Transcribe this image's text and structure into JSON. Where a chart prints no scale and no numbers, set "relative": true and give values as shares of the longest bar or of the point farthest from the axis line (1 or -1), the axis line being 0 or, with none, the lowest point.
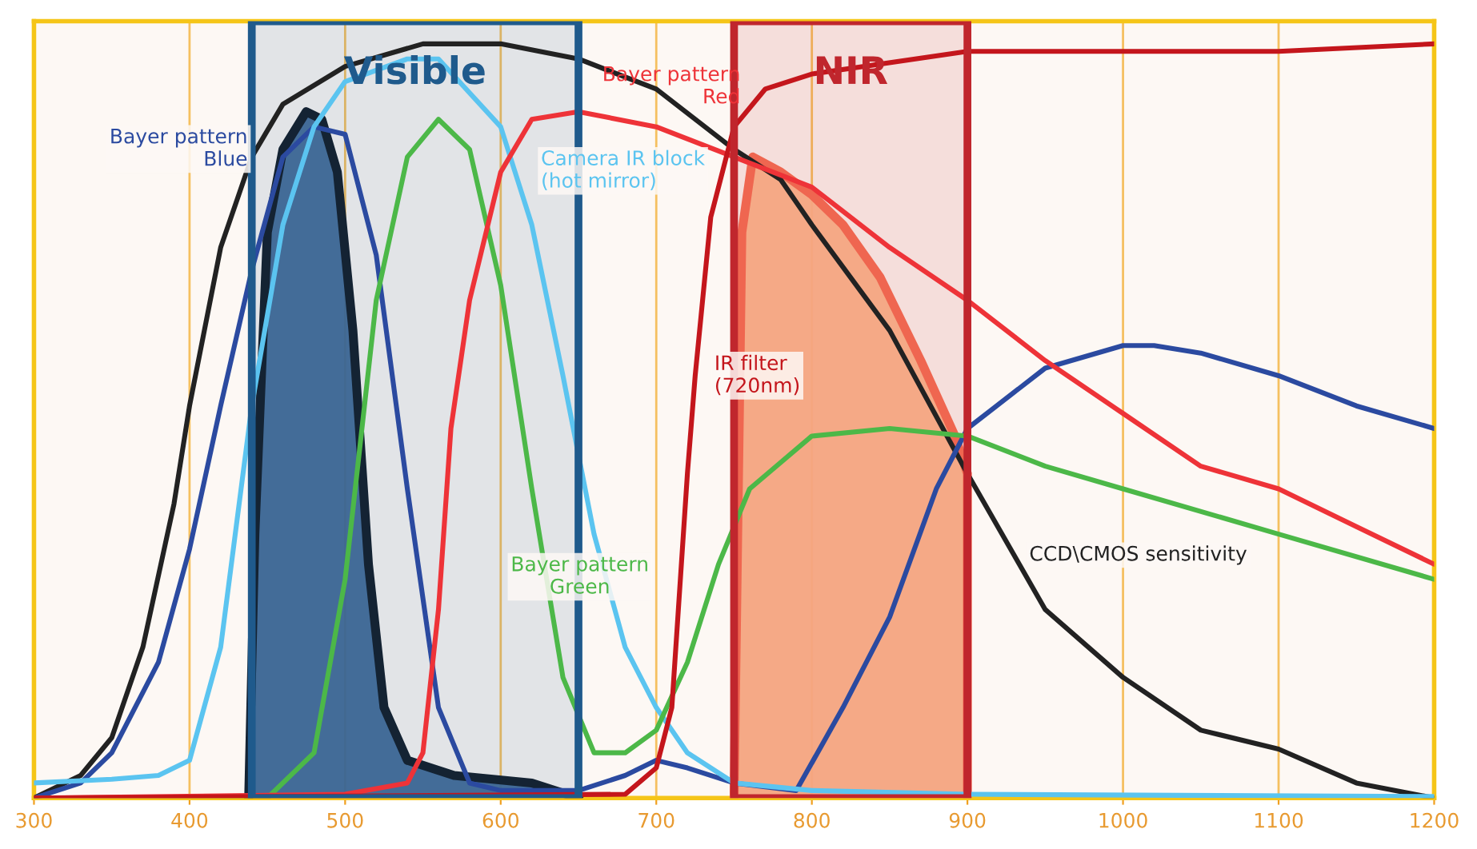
{
  "chart_data": {
    "type": "line",
    "relative": true,
    "xlim": [
      300,
      1200
    ],
    "xticks": [
      300,
      400,
      500,
      600,
      700,
      800,
      900,
      1000,
      1100,
      1200
    ],
    "grid": "x",
    "legend": false,
    "series": [
      {
        "name": "CCD\\CMOS sensitivity",
        "color": "#222222",
        "x": [
          300,
          330,
          350,
          370,
          390,
          400,
          420,
          440,
          460,
          500,
          550,
          600,
          650,
          700,
          750,
          780,
          800,
          850,
          900,
          950,
          1000,
          1050,
          1100,
          1150,
          1200
        ],
        "values": [
          0.0,
          0.03,
          0.08,
          0.2,
          0.39,
          0.52,
          0.73,
          0.85,
          0.92,
          0.97,
          1.0,
          1.0,
          0.98,
          0.94,
          0.86,
          0.82,
          0.76,
          0.62,
          0.43,
          0.25,
          0.16,
          0.09,
          0.065,
          0.02,
          0.0
        ]
      },
      {
        "name": "Bayer pattern\nBlue",
        "color": "#2b4aa0",
        "x": [
          300,
          330,
          350,
          380,
          400,
          420,
          440,
          460,
          480,
          500,
          520,
          540,
          560,
          580,
          600,
          650,
          680,
          700,
          720,
          750,
          790,
          820,
          850,
          880,
          900,
          950,
          1000,
          1020,
          1050,
          1100,
          1150,
          1200
        ],
        "values": [
          0.0,
          0.02,
          0.06,
          0.18,
          0.33,
          0.52,
          0.7,
          0.85,
          0.89,
          0.88,
          0.72,
          0.41,
          0.12,
          0.02,
          0.01,
          0.01,
          0.03,
          0.05,
          0.04,
          0.02,
          0.01,
          0.12,
          0.24,
          0.41,
          0.49,
          0.57,
          0.6,
          0.6,
          0.59,
          0.56,
          0.52,
          0.49
        ]
      },
      {
        "name": "Camera IR block\n(hot mirror)",
        "color": "#5bc4f0",
        "x": [
          300,
          350,
          380,
          400,
          420,
          440,
          460,
          480,
          500,
          540,
          560,
          600,
          620,
          640,
          660,
          680,
          700,
          720,
          750,
          800,
          900,
          1200
        ],
        "values": [
          0.02,
          0.025,
          0.03,
          0.05,
          0.2,
          0.52,
          0.76,
          0.89,
          0.95,
          0.98,
          0.98,
          0.89,
          0.76,
          0.56,
          0.35,
          0.2,
          0.12,
          0.06,
          0.02,
          0.01,
          0.005,
          0.002
        ]
      },
      {
        "name": "Bayer pattern\nGreen",
        "color": "#4cb848",
        "x": [
          300,
          450,
          480,
          500,
          520,
          540,
          560,
          580,
          600,
          620,
          640,
          660,
          680,
          700,
          720,
          740,
          760,
          800,
          850,
          900,
          950,
          1000,
          1100,
          1200
        ],
        "values": [
          0.0,
          0.0,
          0.06,
          0.29,
          0.66,
          0.85,
          0.9,
          0.86,
          0.68,
          0.41,
          0.16,
          0.06,
          0.06,
          0.09,
          0.18,
          0.31,
          0.41,
          0.48,
          0.49,
          0.48,
          0.44,
          0.41,
          0.35,
          0.29
        ]
      },
      {
        "name": "Bayer pattern\nRed",
        "color": "#ee3338",
        "x": [
          300,
          500,
          540,
          550,
          560,
          568,
          580,
          600,
          620,
          650,
          700,
          750,
          800,
          850,
          900,
          950,
          1000,
          1050,
          1100,
          1150,
          1200
        ],
        "values": [
          0.0,
          0.005,
          0.02,
          0.06,
          0.25,
          0.49,
          0.66,
          0.83,
          0.9,
          0.91,
          0.89,
          0.85,
          0.81,
          0.73,
          0.66,
          0.58,
          0.51,
          0.44,
          0.41,
          0.36,
          0.31
        ]
      },
      {
        "name": "IR filter\n(720nm)",
        "color": "#c4161c",
        "x": [
          300,
          680,
          700,
          710,
          720,
          725,
          735,
          750,
          770,
          800,
          900,
          1000,
          1100,
          1200
        ],
        "values": [
          0.0,
          0.005,
          0.04,
          0.12,
          0.43,
          0.56,
          0.77,
          0.89,
          0.94,
          0.96,
          0.99,
          0.99,
          0.99,
          1.0
        ]
      },
      {
        "type": "area",
        "color": "#3a6593",
        "x": [
          438,
          442,
          450,
          460,
          475,
          485,
          495,
          505,
          515,
          525,
          540,
          570,
          620,
          650
        ],
        "values": [
          0.0,
          0.35,
          0.75,
          0.86,
          0.91,
          0.9,
          0.83,
          0.62,
          0.31,
          0.12,
          0.05,
          0.03,
          0.02,
          0.0
        ]
      },
      {
        "type": "area",
        "color": "#f4a582",
        "x": [
          750,
          755,
          762,
          780,
          800,
          820,
          844,
          870,
          892,
          900,
          900
        ],
        "values": [
          0.0,
          0.75,
          0.85,
          0.83,
          0.8,
          0.76,
          0.69,
          0.58,
          0.48,
          0.43,
          0.0
        ]
      }
    ],
    "bands": [
      {
        "axis": "x",
        "from": 440,
        "to": 650,
        "label": "Visible",
        "color": "#1f5a8c"
      },
      {
        "axis": "x",
        "from": 750,
        "to": 900,
        "label": "NIR",
        "color": "#c0262d"
      }
    ]
  }
}
